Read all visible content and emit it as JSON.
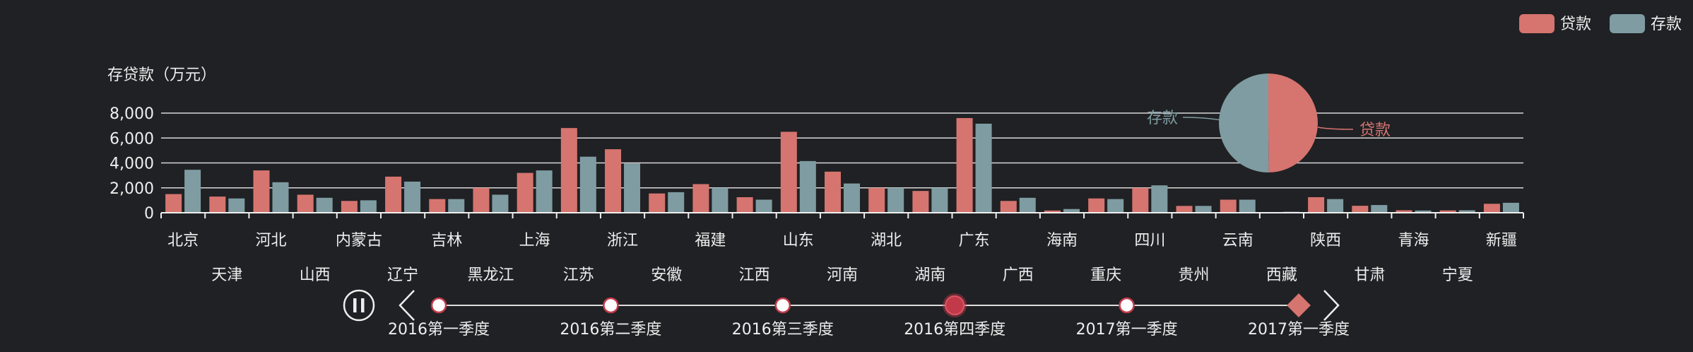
{
  "chart_data": {
    "type": "bar",
    "ylabel": "存贷款（万元）",
    "ylim": [
      0,
      8000
    ],
    "yticks": [
      "0",
      "2,000",
      "4,000",
      "6,000",
      "8,000"
    ],
    "grid": true,
    "legend_position": "top-right",
    "categories": [
      "北京",
      "天津",
      "河北",
      "山西",
      "内蒙古",
      "辽宁",
      "吉林",
      "黑龙江",
      "上海",
      "江苏",
      "浙江",
      "安徽",
      "福建",
      "江西",
      "山东",
      "河南",
      "湖北",
      "湖南",
      "广东",
      "广西",
      "海南",
      "重庆",
      "四川",
      "贵州",
      "云南",
      "西藏",
      "陕西",
      "甘肃",
      "青海",
      "宁夏",
      "新疆"
    ],
    "series": [
      {
        "name": "贷款",
        "color": "#d6746f",
        "values": [
          1500,
          1300,
          3400,
          1450,
          950,
          2900,
          1100,
          2000,
          3200,
          6800,
          5100,
          1550,
          2300,
          1250,
          6500,
          3300,
          2000,
          1750,
          7600,
          950,
          180,
          1150,
          2000,
          550,
          1050,
          30,
          1250,
          560,
          200,
          190,
          720
        ]
      },
      {
        "name": "存款",
        "color": "#7e9ca2",
        "values": [
          3450,
          1150,
          2450,
          1200,
          1000,
          2500,
          1100,
          1450,
          3400,
          4500,
          3950,
          1650,
          2000,
          1050,
          4150,
          2350,
          2000,
          2000,
          7150,
          1200,
          300,
          1100,
          2200,
          550,
          1050,
          80,
          1100,
          620,
          180,
          200,
          800
        ]
      }
    ],
    "pie": {
      "slices": [
        {
          "name": "贷款",
          "value": 71480
        },
        {
          "name": "存款",
          "value": 71710
        }
      ]
    },
    "timeline": {
      "labels": [
        "2016第一季度",
        "2016第二季度",
        "2016第三季度",
        "2016第四季度",
        "2017第一季度",
        "2017第一季度"
      ],
      "current_index": 3,
      "accent_color": "#c23a4a"
    }
  }
}
